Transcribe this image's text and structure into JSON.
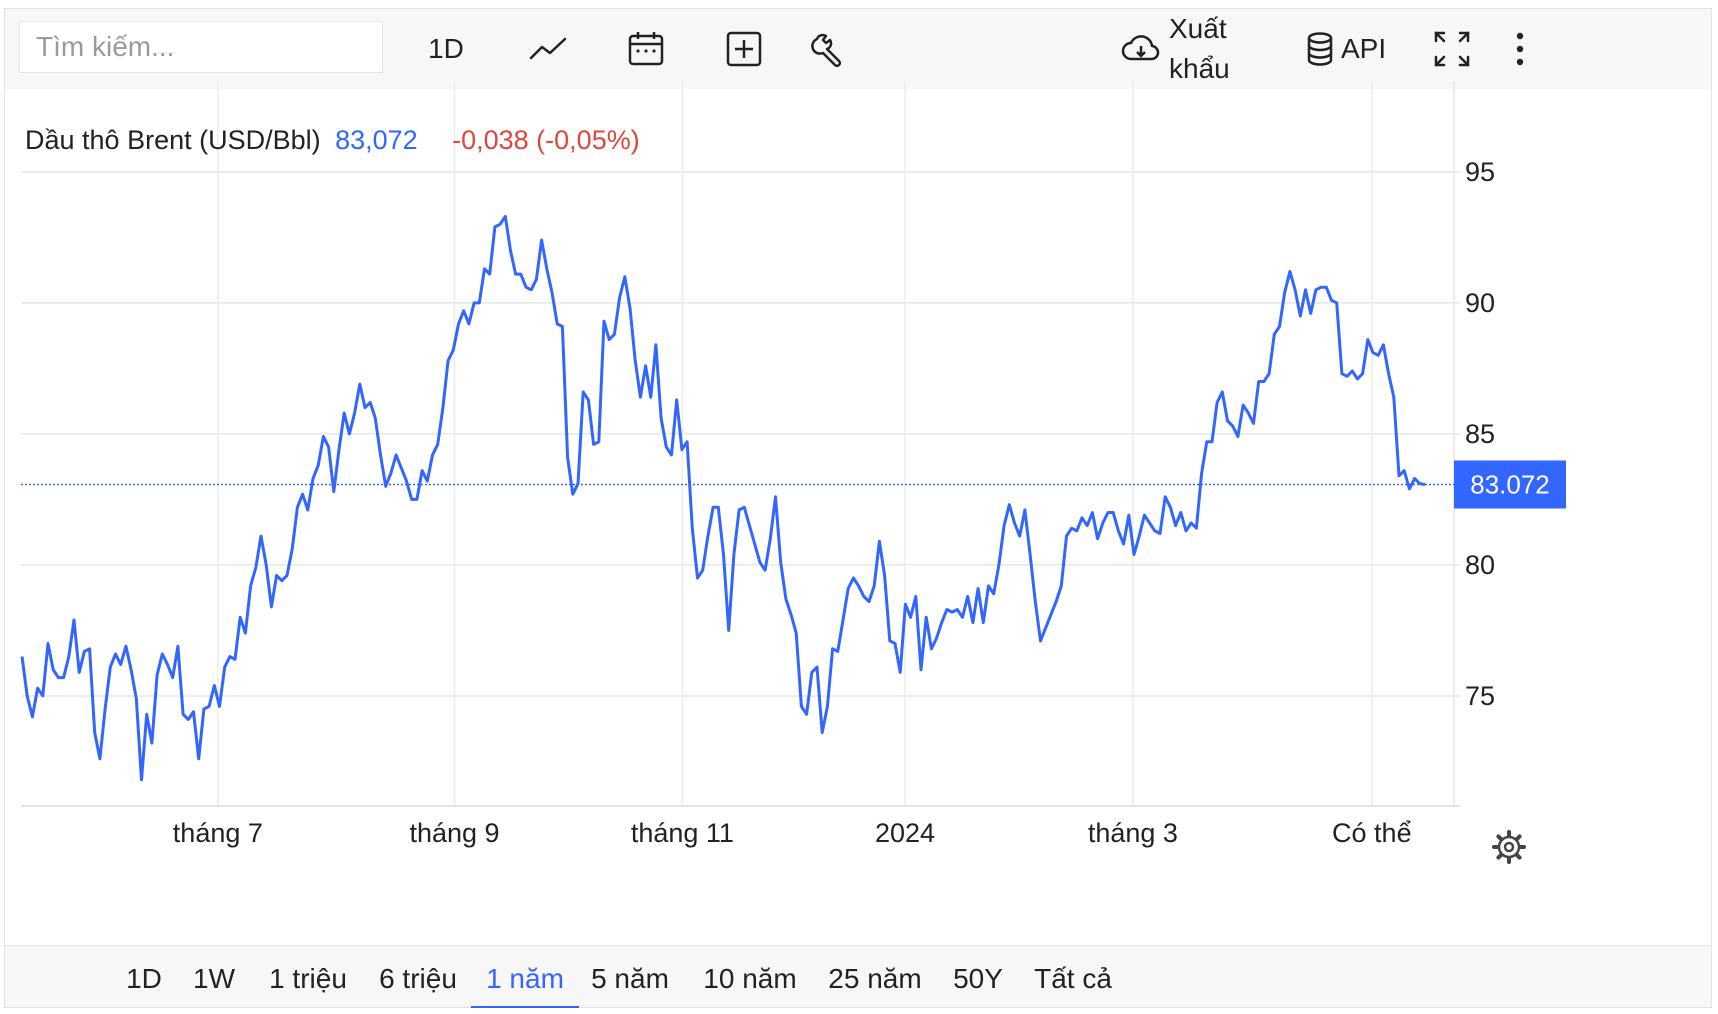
{
  "toolbar": {
    "search_placeholder": "Tìm kiếm...",
    "interval_label": "1D",
    "export_label_line1": "Xuất",
    "export_label_line2": "khẩu",
    "api_label": "API"
  },
  "footer": {
    "ranges": [
      "1D",
      "1W",
      "1 triệu",
      "6 triệu",
      "1 năm",
      "5 năm",
      "10 năm",
      "25 năm",
      "50Y",
      "Tất cả"
    ],
    "active_range": "1 năm"
  },
  "colors": {
    "line": "#3366ff",
    "negative": "#e0463b",
    "grid": "#e6e6e6"
  },
  "chart_data": {
    "type": "line",
    "series": [
      {
        "name": "Dầu thô Brent (USD/Bbl)",
        "x_range": [
          0,
          1
        ],
        "values": [
          76.5,
          75.0,
          74.2,
          75.3,
          75.0,
          77.0,
          76.0,
          75.7,
          75.7,
          76.5,
          77.9,
          75.9,
          76.7,
          76.8,
          73.6,
          72.6,
          74.5,
          76.1,
          76.6,
          76.2,
          76.9,
          76.0,
          74.9,
          71.8,
          74.3,
          73.2,
          75.8,
          76.6,
          76.2,
          75.7,
          76.9,
          74.3,
          74.1,
          74.4,
          72.6,
          74.5,
          74.6,
          75.4,
          74.6,
          76.1,
          76.5,
          76.4,
          78.0,
          77.4,
          79.2,
          79.9,
          81.1,
          80.0,
          78.4,
          79.6,
          79.4,
          79.6,
          80.6,
          82.2,
          82.7,
          82.1,
          83.3,
          83.8,
          84.9,
          84.5,
          82.8,
          84.4,
          85.8,
          85.0,
          85.8,
          86.9,
          86.0,
          86.2,
          85.6,
          84.2,
          83.0,
          83.5,
          84.2,
          83.7,
          83.2,
          82.5,
          82.5,
          83.6,
          83.2,
          84.2,
          84.6,
          86.0,
          87.8,
          88.2,
          89.2,
          89.7,
          89.2,
          90.0,
          90.0,
          91.3,
          91.1,
          92.9,
          93.0,
          93.3,
          92.0,
          91.1,
          91.1,
          90.6,
          90.5,
          90.9,
          92.4,
          91.3,
          90.4,
          89.2,
          89.1,
          84.1,
          82.7,
          83.1,
          86.6,
          86.3,
          84.6,
          84.7,
          89.3,
          88.6,
          88.8,
          90.2,
          91.0,
          89.8,
          87.8,
          86.4,
          87.6,
          86.4,
          88.4,
          85.6,
          84.5,
          84.2,
          86.3,
          84.4,
          84.7,
          81.4,
          79.5,
          79.8,
          81.1,
          82.2,
          82.2,
          80.4,
          77.5,
          80.4,
          82.1,
          82.2,
          81.5,
          80.8,
          80.1,
          79.8,
          81.0,
          82.6,
          80.1,
          78.7,
          78.1,
          77.4,
          74.6,
          74.3,
          75.9,
          76.1,
          73.6,
          74.6,
          76.8,
          76.7,
          77.9,
          79.1,
          79.5,
          79.2,
          78.8,
          78.6,
          79.2,
          80.9,
          79.6,
          77.1,
          77.0,
          75.9,
          78.5,
          78.0,
          78.8,
          76.0,
          78.0,
          76.8,
          77.2,
          77.8,
          78.3,
          78.2,
          78.3,
          78.0,
          78.8,
          77.8,
          79.1,
          77.8,
          79.2,
          78.9,
          80.0,
          81.5,
          82.3,
          81.6,
          81.1,
          82.1,
          80.4,
          78.6,
          77.1,
          77.6,
          78.1,
          78.6,
          79.2,
          81.1,
          81.4,
          81.3,
          81.8,
          81.5,
          82.0,
          81.0,
          81.6,
          82.0,
          82.0,
          81.3,
          80.8,
          81.9,
          80.4,
          81.1,
          81.9,
          81.6,
          81.3,
          81.2,
          82.6,
          82.2,
          81.5,
          82.0,
          81.3,
          81.6,
          81.4,
          83.5,
          84.7,
          84.7,
          86.2,
          86.6,
          85.5,
          85.3,
          84.9,
          86.1,
          85.8,
          85.4,
          87.0,
          87.0,
          87.3,
          88.8,
          89.1,
          90.4,
          91.2,
          90.5,
          89.5,
          90.5,
          89.6,
          90.5,
          90.6,
          90.6,
          90.1,
          90.0,
          87.3,
          87.2,
          87.4,
          87.1,
          87.3,
          88.6,
          88.1,
          88.0,
          88.4,
          87.3,
          86.4,
          83.4,
          83.6,
          82.9,
          83.3,
          83.1,
          83.07
        ]
      }
    ],
    "last_value": "83,072",
    "last_value_tag": "83.072",
    "change": "-0,038 (-0,05%)",
    "y_ticks": [
      95,
      90,
      85,
      80,
      75
    ],
    "ylim": [
      70.8,
      97.4
    ],
    "x_ticks": [
      {
        "label": "tháng 7",
        "pos": 0.1396
      },
      {
        "label": "tháng 9",
        "pos": 0.3083
      },
      {
        "label": "tháng 11",
        "pos": 0.4707
      },
      {
        "label": "2024",
        "pos": 0.6294
      },
      {
        "label": "tháng 3",
        "pos": 0.7918
      },
      {
        "label": "Có thể",
        "pos": 0.9621
      }
    ],
    "grid": true,
    "legend_placement": "top-left"
  }
}
